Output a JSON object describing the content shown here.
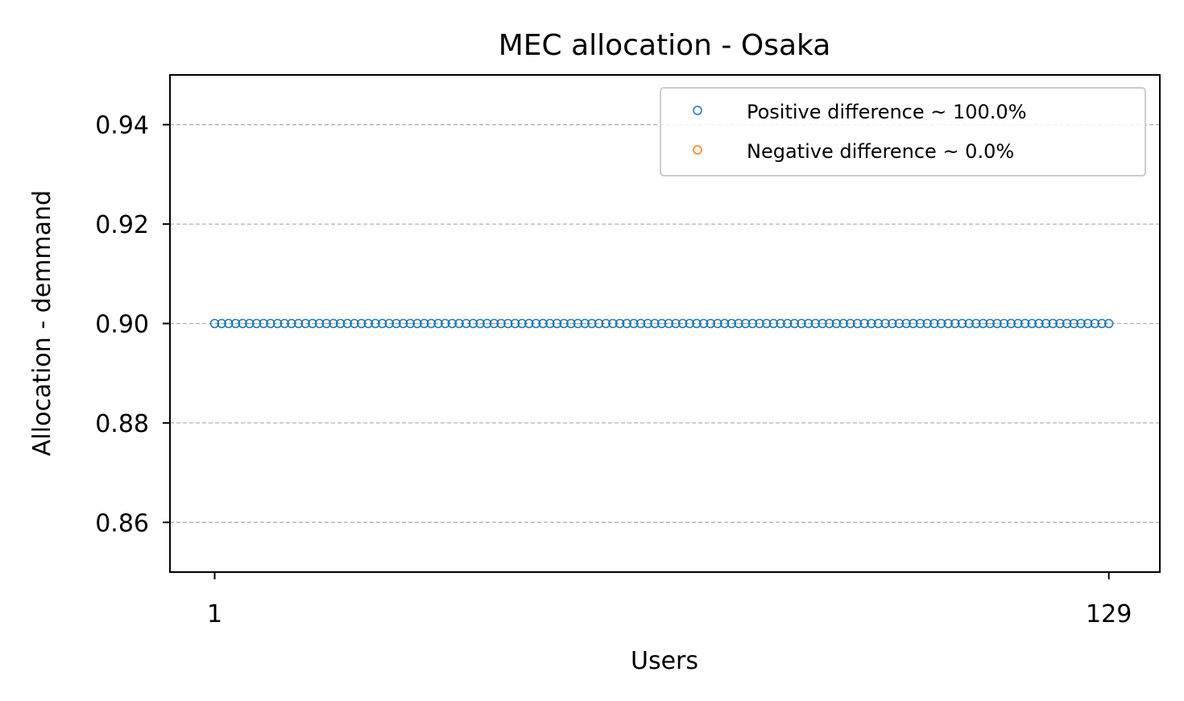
{
  "chart_data": {
    "type": "scatter",
    "title": "MEC allocation - Osaka",
    "xlabel": "Users",
    "ylabel": "Allocation - demmand",
    "xlim": [
      -5.4,
      136.3
    ],
    "ylim": [
      0.85,
      0.95
    ],
    "x_ticks": [
      1,
      129
    ],
    "x_tick_labels": [
      "1",
      "129"
    ],
    "y_ticks": [
      0.86,
      0.88,
      0.9,
      0.92,
      0.94
    ],
    "y_tick_labels": [
      "0.86",
      "0.88",
      "0.90",
      "0.92",
      "0.94"
    ],
    "grid": {
      "axis": "y",
      "style": "dashed"
    },
    "legend_position": "top-right",
    "series": [
      {
        "name": "Positive difference ~ 100.0%",
        "color": "#1f77b4",
        "marker": "open-circle",
        "x_start": 1,
        "x_end": 129,
        "y": 0.9
      },
      {
        "name": "Negative difference ~ 0.0%",
        "color": "#ff7f0e",
        "marker": "open-circle",
        "x": [],
        "y": []
      }
    ]
  }
}
